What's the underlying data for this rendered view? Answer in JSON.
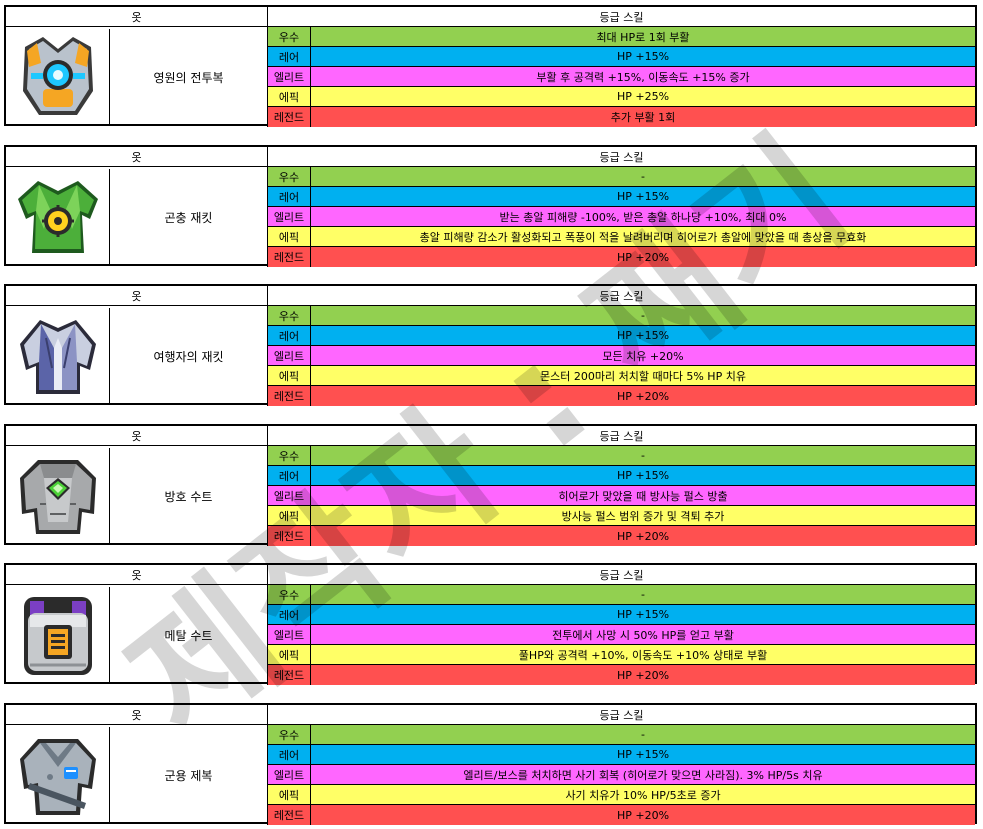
{
  "headers": {
    "item": "옷",
    "skill": "등급 스킬"
  },
  "grade_labels": [
    "우수",
    "레어",
    "엘리트",
    "에픽",
    "레전드"
  ],
  "grade_colors": [
    "#92d050",
    "#00b0f0",
    "#ff66ff",
    "#ffff66",
    "#ff5050"
  ],
  "watermark": "제작자 : 째기",
  "items": [
    {
      "name": "영원의 전투복",
      "icon": "armor-orange-icon",
      "skills": [
        "최대 HP로 1회 부활",
        "HP +15%",
        "부활 후 공격력 +15%, 이동속도 +15% 증가",
        "HP +25%",
        "추가 부활 1회"
      ]
    },
    {
      "name": "곤충 재킷",
      "icon": "insect-jacket-icon",
      "skills": [
        "-",
        "HP +15%",
        "받는 총알 피해량 -100%, 받은 총알 하나당 +10%, 최대 0%",
        "총알 피해량 감소가 활성화되고 폭풍이 적을 날려버리며 히어로가 총알에 맞았을 때 총상을 무효화",
        "HP +20%"
      ]
    },
    {
      "name": "여행자의 재킷",
      "icon": "traveler-jacket-icon",
      "skills": [
        "-",
        "HP +15%",
        "모든 치유 +20%",
        "몬스터 200마리 처치할 때마다 5% HP 치유",
        "HP +20%"
      ]
    },
    {
      "name": "방호 수트",
      "icon": "hazmat-suit-icon",
      "skills": [
        "-",
        "HP +15%",
        "히어로가 맞았을 때 방사능 펄스 방출",
        "방사능 펄스 범위 증가 및 격퇴 추가",
        "HP +20%"
      ]
    },
    {
      "name": "메탈 수트",
      "icon": "metal-suit-icon",
      "skills": [
        "-",
        "HP +15%",
        "전투에서 사망 시 50% HP를 얻고 부활",
        "풀HP와 공격력 +10%, 이동속도 +10% 상태로 부활",
        "HP +20%"
      ]
    },
    {
      "name": "군용 제복",
      "icon": "military-uniform-icon",
      "skills": [
        "-",
        "HP +15%",
        "엘리트/보스를 처치하면 사기 회복 (히어로가 맞으면 사라짐). 3% HP/5s 치유",
        "사기 치유가 10% HP/5초로 증가",
        "HP +20%"
      ]
    }
  ]
}
